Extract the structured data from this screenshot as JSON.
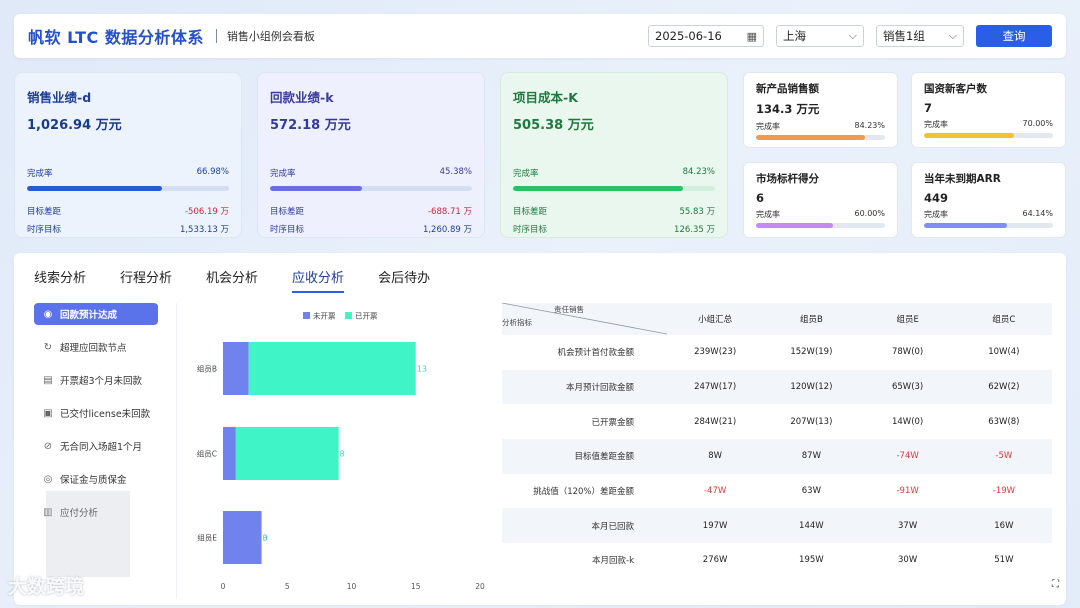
{
  "header": {
    "brand": "帆软 LTC 数据分析体系",
    "subtitle": "销售小组例会看板",
    "date": "2025-06-16",
    "city": "上海",
    "group": "销售1组",
    "query_label": "查询"
  },
  "kpis": [
    {
      "title": "销售业绩-d",
      "value": "1,026.94 万元",
      "rate_label": "完成率",
      "rate": "66.98%",
      "rate_pct": 66.98,
      "gap_label": "目标差距",
      "gap": "-506.19 万",
      "seq_label": "时序目标",
      "seq": "1,533.13 万",
      "color": "#2a5ad6"
    },
    {
      "title": "回款业绩-k",
      "value": "572.18 万元",
      "rate_label": "完成率",
      "rate": "45.38%",
      "rate_pct": 45.38,
      "gap_label": "目标差距",
      "gap": "-688.71 万",
      "seq_label": "时序目标",
      "seq": "1,260.89 万",
      "color": "#6b6ee0"
    },
    {
      "title": "项目成本-K",
      "value": "505.38 万元",
      "rate_label": "完成率",
      "rate": "84.23%",
      "rate_pct": 84.23,
      "gap_label": "目标差距",
      "gap": "55.83 万",
      "seq_label": "时序目标",
      "seq": "126.35 万",
      "color": "#2cc064"
    }
  ],
  "minis": [
    {
      "title": "新产品销售额",
      "value": "134.3 万元",
      "rate_label": "完成率",
      "rate": "84.23%",
      "rate_pct": 84.23,
      "color": "#f39a4a"
    },
    {
      "title": "国资新客户数",
      "value": "7",
      "rate_label": "完成率",
      "rate": "70.00%",
      "rate_pct": 70,
      "color": "#f5c034"
    },
    {
      "title": "市场标杆得分",
      "value": "6",
      "rate_label": "完成率",
      "rate": "60.00%",
      "rate_pct": 60,
      "color": "#c48af0"
    },
    {
      "title": "当年未到期ARR",
      "value": "449",
      "rate_label": "完成率",
      "rate": "64.14%",
      "rate_pct": 64.14,
      "color": "#7f8ef5"
    }
  ],
  "tabs": [
    "线索分析",
    "行程分析",
    "机会分析",
    "应收分析",
    "会后待办"
  ],
  "active_tab": 3,
  "side_items": [
    {
      "label": "回款预计达成",
      "icon": "coin-icon"
    },
    {
      "label": "超理应回款节点",
      "icon": "refresh-icon"
    },
    {
      "label": "开票超3个月未回款",
      "icon": "invoice-icon"
    },
    {
      "label": "已交付license未回款",
      "icon": "license-icon"
    },
    {
      "label": "无合同入场超1个月",
      "icon": "forbidden-icon"
    },
    {
      "label": "保证金与质保金",
      "icon": "deposit-icon"
    },
    {
      "label": "应付分析",
      "icon": "document-icon"
    }
  ],
  "chart_data": {
    "type": "bar",
    "orientation": "horizontal",
    "stacked": true,
    "categories": [
      "组员B",
      "组员C",
      "组员E"
    ],
    "series": [
      {
        "name": "未开票",
        "values": [
          2,
          1,
          3
        ],
        "color": "#6f82ee"
      },
      {
        "name": "已开票",
        "values": [
          13,
          8,
          0
        ],
        "color": "#3ff5c8"
      }
    ],
    "xlim": [
      0,
      20
    ],
    "xticks": [
      0,
      5,
      10,
      15,
      20
    ],
    "legend": "top"
  },
  "table": {
    "header_owner": "责任销售",
    "header_metric": "分析指标",
    "columns": [
      "小组汇总",
      "组员B",
      "组员E",
      "组员C"
    ],
    "rows": [
      {
        "label": "机会预计首付款金额",
        "cells": [
          "239W(23)",
          "152W(19)",
          "78W(0)",
          "10W(4)"
        ]
      },
      {
        "label": "本月预计回款金额",
        "cells": [
          "247W(17)",
          "120W(12)",
          "65W(3)",
          "62W(2)"
        ]
      },
      {
        "label": "已开票金额",
        "cells": [
          "284W(21)",
          "207W(13)",
          "14W(0)",
          "63W(8)"
        ]
      },
      {
        "label": "目标值差距金额",
        "cells": [
          "8W",
          "87W",
          "-74W",
          "-5W"
        ]
      },
      {
        "label": "挑战值（120%）差距金额",
        "cells": [
          "-47W",
          "63W",
          "-91W",
          "-19W"
        ]
      },
      {
        "label": "本月已回款",
        "cells": [
          "197W",
          "144W",
          "37W",
          "16W"
        ]
      },
      {
        "label": "本月回款-k",
        "cells": [
          "276W",
          "195W",
          "30W",
          "51W"
        ]
      }
    ]
  },
  "watermark": "大数跨境"
}
